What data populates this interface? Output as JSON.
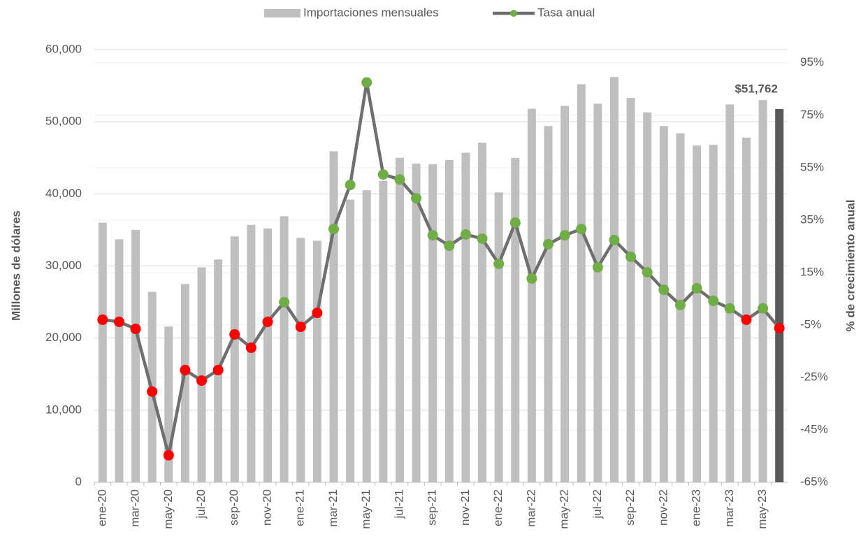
{
  "chart_data": {
    "type": "bar_line",
    "y_label": "Millones de dólares",
    "y2_label": "% de crecimiento anual",
    "categories": [
      "ene-20",
      null,
      "mar-20",
      null,
      "may-20",
      null,
      "jul-20",
      null,
      "sep-20",
      null,
      "nov-20",
      null,
      "ene-21",
      null,
      "mar-21",
      null,
      "may-21",
      null,
      "jul-21",
      null,
      "sep-21",
      null,
      "nov-21",
      null,
      "ene-22",
      null,
      "mar-22",
      null,
      "may-22",
      null,
      "jul-22",
      null,
      "sep-22",
      null,
      "nov-22",
      null,
      "ene-23",
      null,
      "mar-23",
      null,
      "may-23",
      null
    ],
    "series": [
      {
        "name": "Importaciones mensuales",
        "type": "bar",
        "color": "#bfbfbf",
        "colors": [
          null,
          null,
          null,
          null,
          null,
          null,
          null,
          null,
          null,
          null,
          null,
          null,
          null,
          null,
          null,
          null,
          null,
          null,
          null,
          null,
          null,
          null,
          null,
          null,
          null,
          null,
          null,
          null,
          null,
          null,
          null,
          null,
          null,
          null,
          null,
          null,
          null,
          null,
          null,
          null,
          null,
          "#595959"
        ],
        "values": [
          36000,
          33700,
          35000,
          26400,
          21600,
          27500,
          29800,
          30900,
          34100,
          35700,
          35200,
          36900,
          33900,
          33500,
          45900,
          39200,
          40500,
          41800,
          45000,
          44200,
          44100,
          44700,
          45700,
          47100,
          40200,
          45000,
          51800,
          49400,
          52200,
          55200,
          52500,
          56200,
          53300,
          51300,
          49400,
          48400,
          46700,
          46800,
          52400,
          47800,
          53000,
          51762
        ],
        "value_labels": [
          null,
          null,
          null,
          null,
          null,
          null,
          null,
          null,
          null,
          null,
          null,
          null,
          null,
          null,
          null,
          null,
          null,
          null,
          null,
          null,
          null,
          null,
          null,
          null,
          null,
          null,
          null,
          null,
          null,
          null,
          null,
          null,
          null,
          null,
          null,
          null,
          null,
          null,
          null,
          null,
          null,
          "$51,762"
        ]
      },
      {
        "name": "Tasa anual",
        "type": "line",
        "axis": "y2",
        "color": "#6f6f6f",
        "marker_color": "#70ad47",
        "positive_color": "#70ad47",
        "negative_color": "#ff0000",
        "values": [
          -3.0,
          -3.8,
          -6.5,
          -30.4,
          -54.7,
          -22.2,
          -26.2,
          -22.2,
          -8.6,
          -13.7,
          -3.8,
          3.7,
          -5.7,
          -0.4,
          31.6,
          48.4,
          87.5,
          52.4,
          50.5,
          43.3,
          29.2,
          25.2,
          29.5,
          27.9,
          18.3,
          34.0,
          12.7,
          25.8,
          29.2,
          31.6,
          17.0,
          27.4,
          21.0,
          15.1,
          8.4,
          2.6,
          9.0,
          4.2,
          1.3,
          -3.0,
          1.3,
          -6.2
        ]
      }
    ],
    "ylim": [
      0,
      60000
    ],
    "yticks": [
      0,
      {
        "value": 10000,
        "label": "10,000"
      },
      {
        "value": 20000,
        "label": "20,000"
      },
      {
        "value": 30000,
        "label": "30,000"
      },
      {
        "value": 40000,
        "label": "40,000"
      },
      {
        "value": 50000,
        "label": "50,000"
      },
      {
        "value": 60000,
        "label": "60,000"
      }
    ],
    "y2lim": [
      -65,
      100
    ],
    "y2ticks": [
      {
        "value": -65,
        "label": "-65%"
      },
      {
        "value": -45,
        "label": "-45%"
      },
      {
        "value": -25,
        "label": "-25%"
      },
      {
        "value": -5,
        "label": "-5%"
      },
      {
        "value": 15,
        "label": "15%"
      },
      {
        "value": 35,
        "label": "35%"
      },
      {
        "value": 55,
        "label": "55%"
      },
      {
        "value": 75,
        "label": "75%"
      },
      {
        "value": 95,
        "label": "95%"
      }
    ],
    "grid": true,
    "legend": "top"
  }
}
